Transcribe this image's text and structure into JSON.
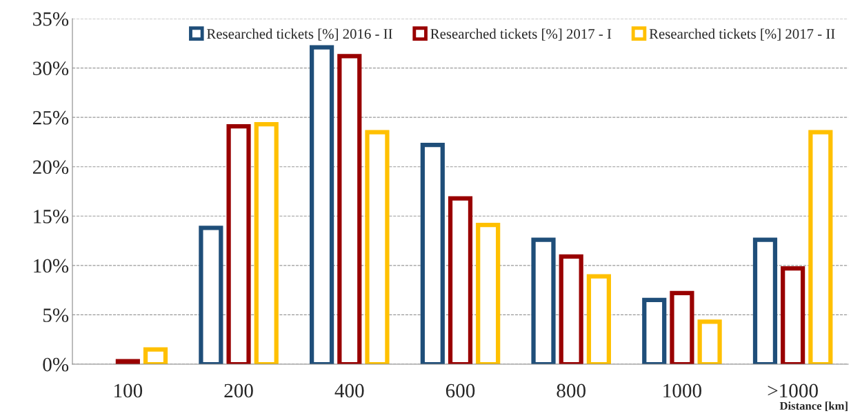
{
  "chart_data": {
    "type": "bar",
    "categories": [
      "100",
      "200",
      "400",
      "600",
      "800",
      "1000",
      ">1000"
    ],
    "series": [
      {
        "name": "Researched tickets [%] 2016 - II",
        "color": "#1f4e79",
        "values": [
          null,
          13.8,
          32.1,
          22.2,
          12.6,
          6.5,
          12.6
        ]
      },
      {
        "name": "Researched tickets [%] 2017 - I",
        "color": "#990000",
        "values": [
          0.3,
          24.1,
          31.2,
          16.8,
          10.9,
          7.2,
          9.7
        ]
      },
      {
        "name": "Researched tickets [%] 2017 - II",
        "color": "#ffc000",
        "values": [
          1.5,
          24.3,
          23.5,
          14.1,
          8.9,
          4.3,
          23.5
        ]
      }
    ],
    "xlabel": "Distance [km]",
    "ylim": [
      0,
      35
    ],
    "yticks": [
      {
        "value": 0,
        "label": "0%"
      },
      {
        "value": 5,
        "label": "5%"
      },
      {
        "value": 10,
        "label": "10%"
      },
      {
        "value": 15,
        "label": "15%"
      },
      {
        "value": 20,
        "label": "20%"
      },
      {
        "value": 25,
        "label": "25%"
      },
      {
        "value": 30,
        "label": "30%"
      },
      {
        "value": 35,
        "label": "35%"
      }
    ],
    "grid": "y",
    "legend": "top right"
  }
}
